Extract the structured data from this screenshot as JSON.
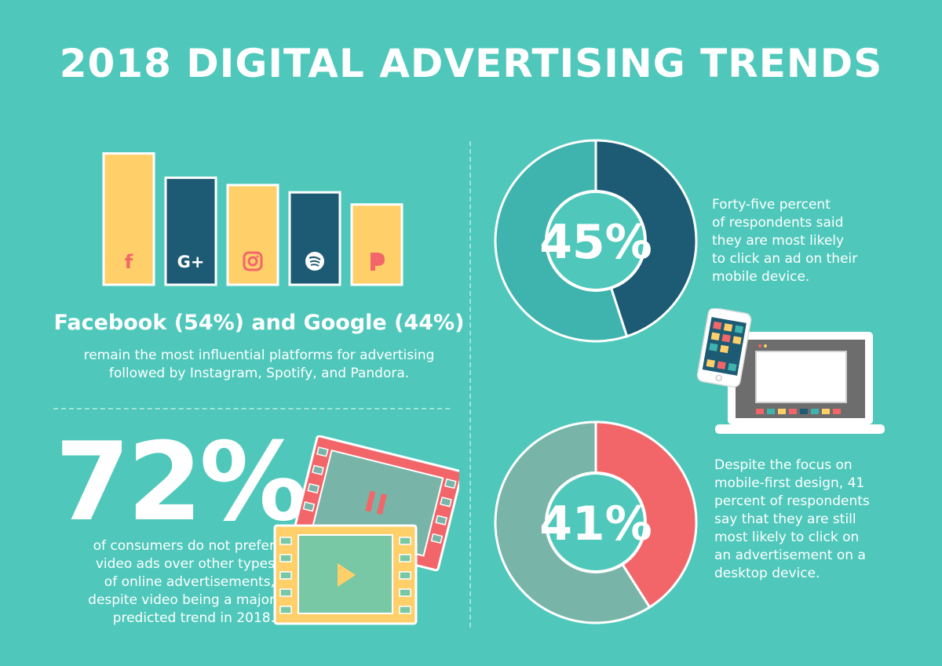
{
  "title": "2018 DIGITAL ADVERTISING TRENDS",
  "colors": {
    "background": "#4fc8bb",
    "yellow": "#ffcf6a",
    "navy": "#1d5a74",
    "teal": "#3fb3ad",
    "coral": "#f2666a",
    "grey_green": "#78b4a8"
  },
  "platforms": {
    "headline": "Facebook (54%) and Google (44%)",
    "caption_line1": "remain the most influential platforms for advertising",
    "caption_line2": "followed by Instagram, Spotify, and Pandora.",
    "icons": [
      "facebook-icon",
      "google-plus-icon",
      "instagram-icon",
      "spotify-icon",
      "pandora-icon"
    ]
  },
  "video": {
    "big_percent": "72%",
    "caption_lines": [
      "of consumers do not prefer",
      "video ads over other types",
      "of online advertisements,",
      "despite video being a major",
      "predicted trend in 2018."
    ]
  },
  "mobile": {
    "percent_label": "45%",
    "caption_lines": [
      "Forty-five percent",
      "of respondents said",
      "they are most likely",
      "to click an ad on their",
      "mobile device."
    ]
  },
  "desktop": {
    "percent_label": "41%",
    "caption_lines": [
      "Despite the focus on",
      "mobile-first design, 41",
      "percent of respondents",
      "say that they are still",
      "most likely to click on",
      "an advertisement on a",
      "desktop device."
    ]
  },
  "chart_data": [
    {
      "type": "bar",
      "categories": [
        "facebook-icon",
        "google-plus-icon",
        "instagram-icon",
        "spotify-icon",
        "pandora-icon"
      ],
      "values": [
        54,
        44,
        41,
        38,
        33
      ],
      "ylim": [
        0,
        60
      ],
      "colors": [
        "#ffcf6a",
        "#1d5a74",
        "#ffcf6a",
        "#1d5a74",
        "#ffcf6a"
      ],
      "grid": false
    },
    {
      "type": "pie",
      "values": [
        45,
        55
      ],
      "colors": [
        "#1d5a74",
        "#3fb3ad"
      ],
      "center_label": "45%"
    },
    {
      "type": "pie",
      "values": [
        41,
        59
      ],
      "colors": [
        "#f2666a",
        "#78b4a8"
      ],
      "center_label": "41%"
    }
  ]
}
